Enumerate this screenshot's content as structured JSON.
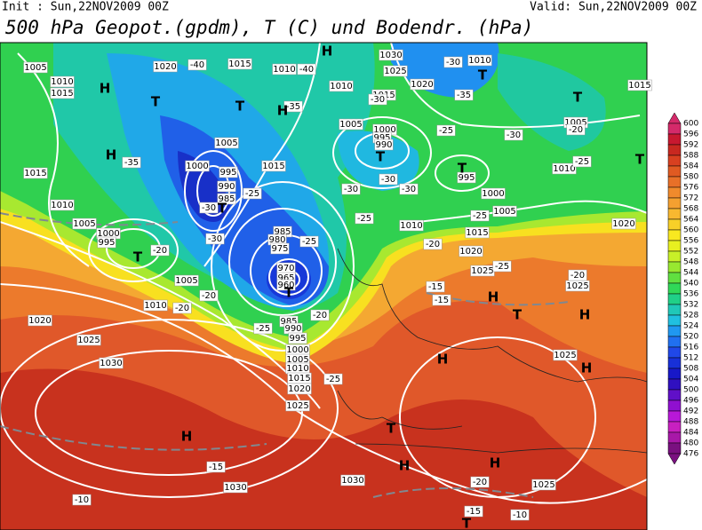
{
  "header": {
    "init": "Init : Sun,22NOV2009 00Z",
    "valid": "Valid: Sun,22NOV2009 00Z",
    "title": "500 hPa Geopot.(gpdm), T (C) und Bodendr. (hPa)"
  },
  "map": {
    "pressure_labels": [
      "1020",
      "1015",
      "1010",
      "1005",
      "1010",
      "1015",
      "1030",
      "1025",
      "1020",
      "1010",
      "1010",
      "1015",
      "1005",
      "1000",
      "995",
      "990",
      "1005",
      "1010",
      "1005",
      "1000",
      "995",
      "1005",
      "1000",
      "995",
      "990",
      "985",
      "1015",
      "1015",
      "1010",
      "1005",
      "1000",
      "995",
      "985",
      "980",
      "975",
      "970",
      "965",
      "960",
      "985",
      "990",
      "995",
      "1000",
      "1005",
      "1010",
      "1015",
      "1020",
      "1025",
      "1005",
      "1010",
      "1020",
      "1025",
      "1030",
      "1030",
      "1030",
      "1025",
      "1025",
      "1025",
      "1025",
      "1020",
      "1015",
      "1010",
      "1015",
      "1020"
    ],
    "temperature_labels": [
      "-40",
      "-40",
      "-35",
      "-30",
      "-30",
      "-25",
      "-25",
      "-30",
      "-30",
      "-30",
      "-25",
      "-20",
      "-20",
      "-20",
      "-25",
      "-20",
      "-25",
      "-15",
      "-15",
      "-25",
      "-20",
      "-20",
      "-25",
      "-30",
      "-25",
      "-30",
      "-35",
      "-30",
      "-20",
      "-25",
      "-15",
      "-10",
      "-20",
      "-15",
      "-10",
      "-35"
    ],
    "centers": [
      "H",
      "H",
      "T",
      "T",
      "H",
      "T",
      "T",
      "T",
      "T",
      "T",
      "T",
      "T",
      "T",
      "H",
      "T",
      "H",
      "H",
      "H",
      "T",
      "H",
      "H",
      "H",
      "T",
      "H"
    ]
  },
  "legend": {
    "ticks": [
      600,
      596,
      592,
      588,
      584,
      580,
      576,
      572,
      568,
      564,
      560,
      556,
      552,
      548,
      544,
      540,
      536,
      532,
      528,
      524,
      520,
      516,
      512,
      508,
      504,
      500,
      496,
      492,
      488,
      484,
      480,
      476
    ],
    "colors": [
      "#d42a6a",
      "#c81830",
      "#c82820",
      "#d84020",
      "#e05a22",
      "#e87028",
      "#f08a2c",
      "#f4a030",
      "#f8b830",
      "#f8d028",
      "#f8e820",
      "#e8f020",
      "#c8f028",
      "#98e830",
      "#60e040",
      "#30d858",
      "#20d088",
      "#20c8b8",
      "#20c0e0",
      "#2098f0",
      "#2070f0",
      "#2048e8",
      "#1830d8",
      "#1818c8",
      "#3010c0",
      "#6010c8",
      "#9010d0",
      "#b818d8",
      "#c820c0",
      "#a818a8",
      "#7a1080"
    ]
  }
}
